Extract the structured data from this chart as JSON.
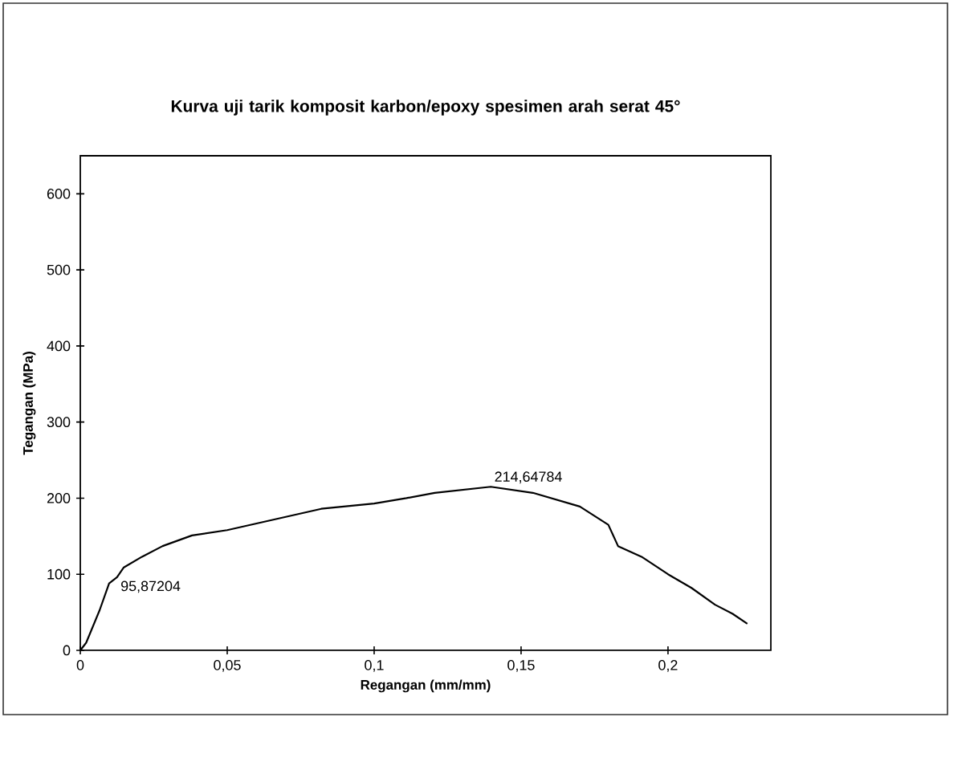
{
  "chart_data": {
    "type": "line",
    "title": "Kurva uji tarik komposit karbon/epoxy spesimen arah serat 45°",
    "xlabel": "Regangan (mm/mm)",
    "ylabel": "Tegangan (MPa)",
    "series": [
      {
        "color": "#000000",
        "x": [
          0,
          0.002,
          0.0066,
          0.0098,
          0.0125,
          0.0148,
          0.021,
          0.028,
          0.038,
          0.05,
          0.066,
          0.082,
          0.1,
          0.111,
          0.1206,
          0.1397,
          0.154,
          0.17,
          0.1797,
          0.183,
          0.191,
          0.2,
          0.208,
          0.216,
          0.222,
          0.227
        ],
        "values": [
          0,
          10,
          53,
          88,
          96,
          109,
          123,
          137,
          151,
          158,
          172,
          186,
          193,
          200,
          207,
          215,
          207,
          189,
          165,
          137,
          123,
          100,
          82,
          60,
          48,
          35
        ]
      }
    ],
    "annotations": [
      {
        "text": "95,87204",
        "x": 0.0125,
        "y": 95.87204
      },
      {
        "text": "214,64784",
        "x": 0.1397,
        "y": 214.64784
      }
    ],
    "xlim": [
      0,
      0.235
    ],
    "ylim": [
      0,
      650
    ],
    "xticks": [
      0,
      {
        "value": 0.05,
        "label": "0,05"
      },
      {
        "value": 0.1,
        "label": "0,1"
      },
      {
        "value": 0.15,
        "label": "0,15"
      },
      {
        "value": 0.2,
        "label": "0,2"
      }
    ],
    "yticks": [
      0,
      100,
      200,
      300,
      400,
      500,
      600
    ],
    "grid": false,
    "marker": "none",
    "line_style": "solid"
  }
}
